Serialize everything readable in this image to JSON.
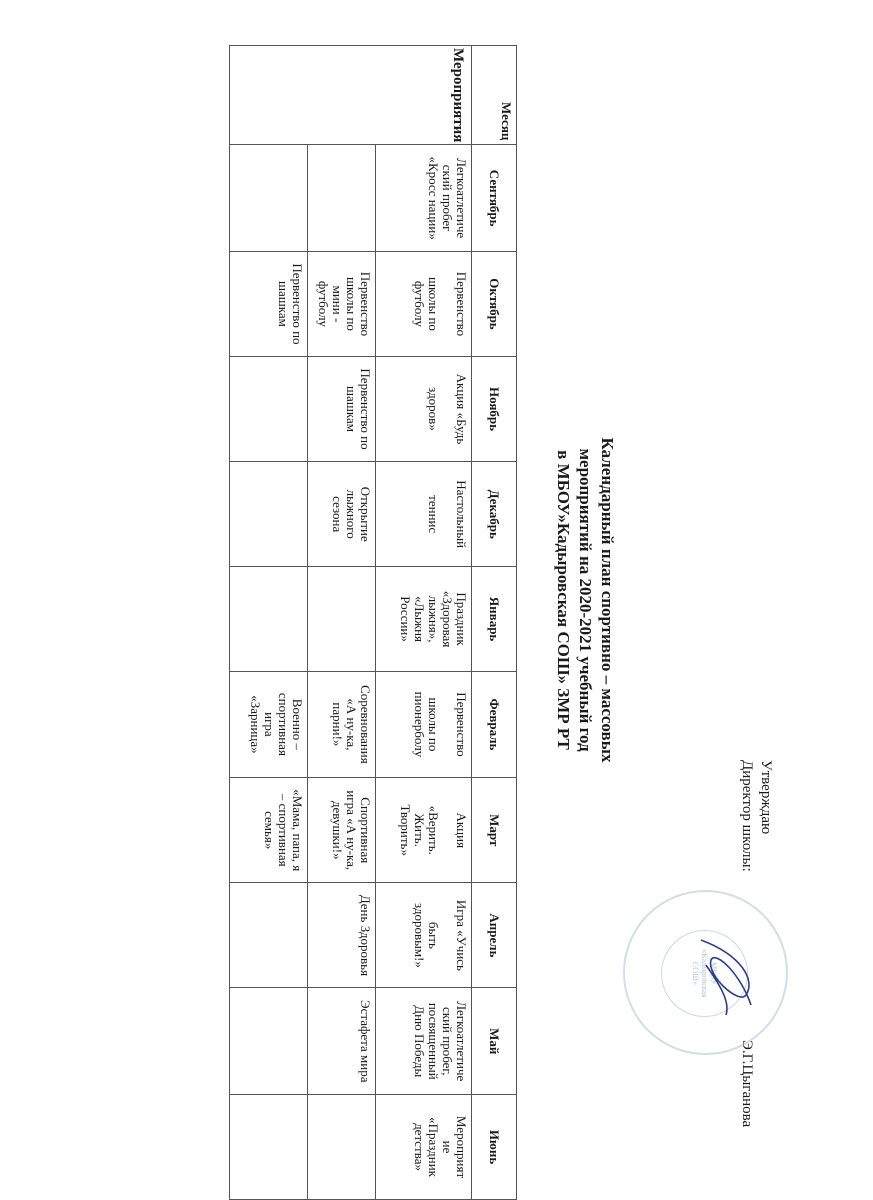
{
  "approval": {
    "line1": "Утверждаю",
    "line2": "Директор школы:",
    "name": "Э.Г.Цыганова",
    "stamp_text": "МБОУ «Кадыровская СОШ»"
  },
  "title": {
    "line1": "Календарный план спортивно – массовых",
    "line2": "мероприятий на 2020-2021 учебный год",
    "line3": "в МБОУ»Кадыровская СОШ» ЗМР РТ"
  },
  "table": {
    "col_month": "Месяц",
    "col_events": "Мероприятия",
    "months": [
      "Сентябрь",
      "Октябрь",
      "Ноябрь",
      "Декабрь",
      "Январь",
      "Февраль",
      "Март",
      "Апрель",
      "Май",
      "Июнь"
    ],
    "rows": [
      [
        "Легкоатлетиче\nский пробег\n«Кросс нации»",
        "Первенство\n\nшколы по\nфутболу",
        "Акция «Будь\n\nздоров»",
        "Настольный\n\nтеннис",
        "Праздник\n«Здоровая\nлыжня»,\n«Лыжня\nРоссии»",
        "Первенство\n\nшколы по\nпионерболу",
        "Акция\n\n«Верить.\nЖить.\nТворить»",
        "Игра «Учись\n\nбыть\nздоровым!»",
        "Легкоатлетиче\nский пробег,\nпосвященный\nДню Победы",
        "Мероприят\nие\n«Праздник\nдетства»"
      ],
      [
        "",
        "Первенство\nшколы по\nмини -\nфутболу",
        "Первенство по\nшашкам",
        "Открытие\nлыжного\nсезона",
        "",
        "Соревнования\n«А ну-ка,\nпарни!»",
        "Спортивная\nигра «А ну-ка,\nдевушки!»",
        "День Здоровья",
        "Эстафета мира",
        ""
      ],
      [
        "",
        "Первенство по\nшашкам",
        "",
        "",
        "",
        "Военно –\nспортивная\nигра\n«Зарница»",
        "«Мама, папа, я\n– спортивная\nсемья»",
        "",
        "",
        ""
      ]
    ]
  }
}
